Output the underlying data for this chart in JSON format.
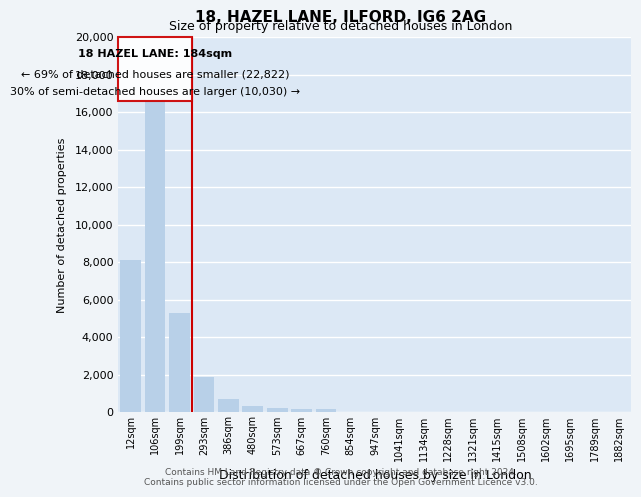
{
  "title1": "18, HAZEL LANE, ILFORD, IG6 2AG",
  "title2": "Size of property relative to detached houses in London",
  "xlabel": "Distribution of detached houses by size in London",
  "ylabel": "Number of detached properties",
  "categories": [
    "12sqm",
    "106sqm",
    "199sqm",
    "293sqm",
    "386sqm",
    "480sqm",
    "573sqm",
    "667sqm",
    "760sqm",
    "854sqm",
    "947sqm",
    "1041sqm",
    "1134sqm",
    "1228sqm",
    "1321sqm",
    "1415sqm",
    "1508sqm",
    "1602sqm",
    "1695sqm",
    "1789sqm",
    "1882sqm"
  ],
  "values": [
    8100,
    16600,
    5300,
    1850,
    700,
    310,
    230,
    180,
    170,
    0,
    0,
    0,
    0,
    0,
    0,
    0,
    0,
    0,
    0,
    0,
    0
  ],
  "bar_color": "#b8d0e8",
  "red_line_color": "#cc0000",
  "box_edge_color": "#cc0000",
  "annotation_text1": "18 HAZEL LANE: 184sqm",
  "annotation_text2": "← 69% of detached houses are smaller (22,822)",
  "annotation_text3": "30% of semi-detached houses are larger (10,030) →",
  "ylim_max": 20000,
  "yticks": [
    0,
    2000,
    4000,
    6000,
    8000,
    10000,
    12000,
    14000,
    16000,
    18000,
    20000
  ],
  "background_color": "#dce8f5",
  "grid_color": "#ffffff",
  "footer1": "Contains HM Land Registry data © Crown copyright and database right 2024.",
  "footer2": "Contains public sector information licensed under the Open Government Licence v3.0."
}
